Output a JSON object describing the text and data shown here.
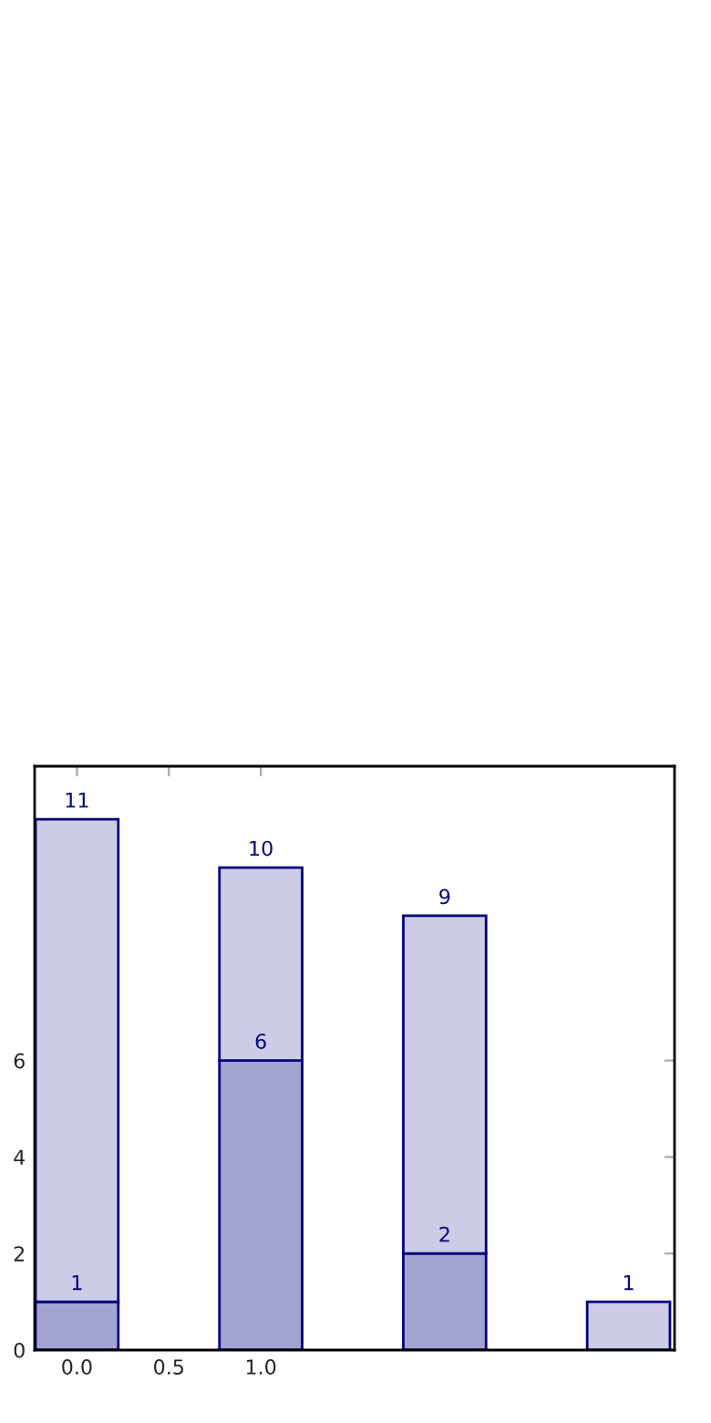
{
  "chart_data": {
    "type": "bar",
    "x": [
      0,
      1,
      2,
      3
    ],
    "stacked": true,
    "series": [
      {
        "color": "#a3a3d1",
        "values": [
          1,
          6,
          2,
          null
        ],
        "value_labels": [
          "1",
          "6",
          "2",
          null
        ]
      },
      {
        "color": "#ccccE6",
        "values": [
          10,
          4,
          7,
          1
        ]
      }
    ],
    "totals": [
      "11",
      "10",
      "9",
      "1"
    ],
    "xlim": [
      -0.23,
      3.25
    ],
    "ylim": [
      0,
      12.1
    ],
    "xticks": [
      {
        "value": 0,
        "label": "0.0"
      },
      {
        "value": 0.5,
        "label": "0.5"
      },
      {
        "value": 1,
        "label": "1.0"
      }
    ],
    "yticks": [
      0,
      2,
      4,
      6
    ],
    "grid": false,
    "legend": false
  }
}
